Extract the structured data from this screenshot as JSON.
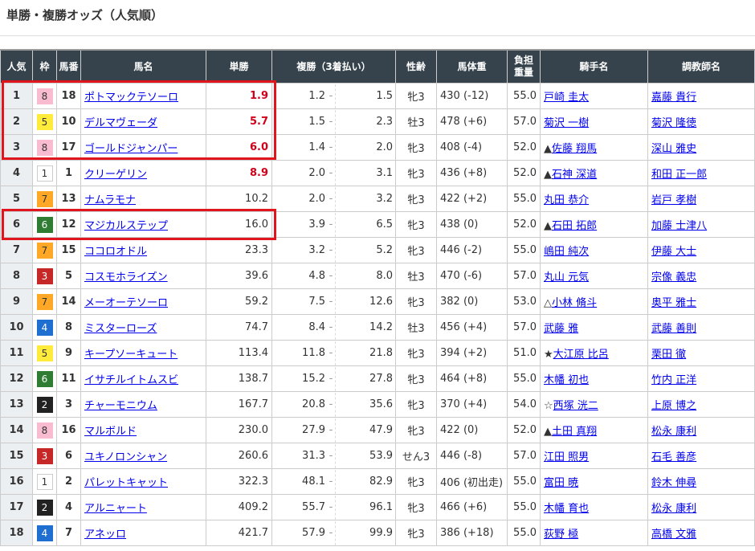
{
  "title": "単勝・複勝オッズ（人気順）",
  "headers": {
    "pop": "人気",
    "waku": "枠",
    "num": "馬番",
    "name": "馬名",
    "win": "単勝",
    "place": "複勝（3着払い）",
    "sexage": "性齢",
    "weight": "馬体重",
    "burden1": "負担",
    "burden2": "重量",
    "jockey": "騎手名",
    "trainer": "調教師名"
  },
  "waku_colors": {
    "1": "#ffffff",
    "2": "#222222",
    "3": "#c62828",
    "4": "#1e6fd0",
    "5": "#ffeb3b",
    "6": "#2e7d32",
    "7": "#ffa726",
    "8": "#f8bbd0"
  },
  "highlight_color": "#e0161e",
  "rows": [
    {
      "pop": "1",
      "waku": "8",
      "num": "18",
      "name": "ポトマックテソーロ",
      "win": "1.9",
      "pmin": "1.2",
      "pmax": "1.5",
      "sexage": "牝3",
      "weight": "430 (-12)",
      "burden": "55.0",
      "mark": "",
      "jockey": "戸崎 圭太",
      "trainer": "嘉藤 貴行"
    },
    {
      "pop": "2",
      "waku": "5",
      "num": "10",
      "name": "デルマヴェーダ",
      "win": "5.7",
      "pmin": "1.5",
      "pmax": "2.3",
      "sexage": "牡3",
      "weight": "478 (+6)",
      "burden": "57.0",
      "mark": "",
      "jockey": "菊沢 一樹",
      "trainer": "菊沢 隆徳"
    },
    {
      "pop": "3",
      "waku": "8",
      "num": "17",
      "name": "ゴールドジャンパー",
      "win": "6.0",
      "pmin": "1.4",
      "pmax": "2.0",
      "sexage": "牝3",
      "weight": "408 (-4)",
      "burden": "52.0",
      "mark": "▲",
      "jockey": "佐藤 翔馬",
      "trainer": "深山 雅史"
    },
    {
      "pop": "4",
      "waku": "1",
      "num": "1",
      "name": "クリーゲリン",
      "win": "8.9",
      "pmin": "2.0",
      "pmax": "3.1",
      "sexage": "牝3",
      "weight": "436 (+8)",
      "burden": "52.0",
      "mark": "▲",
      "jockey": "石神 深道",
      "trainer": "和田 正一郎"
    },
    {
      "pop": "5",
      "waku": "7",
      "num": "13",
      "name": "ナムラモナ",
      "win": "10.2",
      "pmin": "2.0",
      "pmax": "3.2",
      "sexage": "牝3",
      "weight": "422 (+2)",
      "burden": "55.0",
      "mark": "",
      "jockey": "丸田 恭介",
      "trainer": "岩戸 孝樹"
    },
    {
      "pop": "6",
      "waku": "6",
      "num": "12",
      "name": "マジカルステップ",
      "win": "16.0",
      "pmin": "3.9",
      "pmax": "6.5",
      "sexage": "牝3",
      "weight": "438 (0)",
      "burden": "52.0",
      "mark": "▲",
      "jockey": "石田 拓郎",
      "trainer": "加藤 士津八"
    },
    {
      "pop": "7",
      "waku": "7",
      "num": "15",
      "name": "ココロオドル",
      "win": "23.3",
      "pmin": "3.2",
      "pmax": "5.2",
      "sexage": "牝3",
      "weight": "446 (-2)",
      "burden": "55.0",
      "mark": "",
      "jockey": "嶋田 純次",
      "trainer": "伊藤 大士"
    },
    {
      "pop": "8",
      "waku": "3",
      "num": "5",
      "name": "コスモホライズン",
      "win": "39.6",
      "pmin": "4.8",
      "pmax": "8.0",
      "sexage": "牡3",
      "weight": "470 (-6)",
      "burden": "57.0",
      "mark": "",
      "jockey": "丸山 元気",
      "trainer": "宗像 義忠"
    },
    {
      "pop": "9",
      "waku": "7",
      "num": "14",
      "name": "メーオーテソーロ",
      "win": "59.2",
      "pmin": "7.5",
      "pmax": "12.6",
      "sexage": "牝3",
      "weight": "382 (0)",
      "burden": "53.0",
      "mark": "△",
      "jockey": "小林 脩斗",
      "trainer": "奥平 雅士"
    },
    {
      "pop": "10",
      "waku": "4",
      "num": "8",
      "name": "ミスターローズ",
      "win": "74.7",
      "pmin": "8.4",
      "pmax": "14.2",
      "sexage": "牡3",
      "weight": "456 (+4)",
      "burden": "57.0",
      "mark": "",
      "jockey": "武藤 雅",
      "trainer": "武藤 善則"
    },
    {
      "pop": "11",
      "waku": "5",
      "num": "9",
      "name": "キープソーキュート",
      "win": "113.4",
      "pmin": "11.8",
      "pmax": "21.8",
      "sexage": "牝3",
      "weight": "394 (+2)",
      "burden": "51.0",
      "mark": "★",
      "jockey": "大江原 比呂",
      "trainer": "栗田 徹"
    },
    {
      "pop": "12",
      "waku": "6",
      "num": "11",
      "name": "イサチルイトムスビ",
      "win": "138.7",
      "pmin": "15.2",
      "pmax": "27.8",
      "sexage": "牝3",
      "weight": "464 (+8)",
      "burden": "55.0",
      "mark": "",
      "jockey": "木幡 初也",
      "trainer": "竹内 正洋"
    },
    {
      "pop": "13",
      "waku": "2",
      "num": "3",
      "name": "チャーモニウム",
      "win": "167.7",
      "pmin": "20.8",
      "pmax": "35.6",
      "sexage": "牝3",
      "weight": "370 (+4)",
      "burden": "54.0",
      "mark": "☆",
      "jockey": "西塚 洸二",
      "trainer": "上原 博之"
    },
    {
      "pop": "14",
      "waku": "8",
      "num": "16",
      "name": "マルボルド",
      "win": "230.0",
      "pmin": "27.9",
      "pmax": "47.9",
      "sexage": "牝3",
      "weight": "422 (0)",
      "burden": "52.0",
      "mark": "▲",
      "jockey": "土田 真翔",
      "trainer": "松永 康利"
    },
    {
      "pop": "15",
      "waku": "3",
      "num": "6",
      "name": "ユキノロンシャン",
      "win": "260.6",
      "pmin": "31.3",
      "pmax": "53.9",
      "sexage": "せん3",
      "weight": "446 (-8)",
      "burden": "57.0",
      "mark": "",
      "jockey": "江田 照男",
      "trainer": "石毛 善彦"
    },
    {
      "pop": "16",
      "waku": "1",
      "num": "2",
      "name": "パレットキャット",
      "win": "322.3",
      "pmin": "48.1",
      "pmax": "82.9",
      "sexage": "牝3",
      "weight": "406 (初出走)",
      "burden": "55.0",
      "mark": "",
      "jockey": "富田 暁",
      "trainer": "鈴木 伸尋"
    },
    {
      "pop": "17",
      "waku": "2",
      "num": "4",
      "name": "アルニャート",
      "win": "409.2",
      "pmin": "55.7",
      "pmax": "96.1",
      "sexage": "牝3",
      "weight": "466 (+6)",
      "burden": "55.0",
      "mark": "",
      "jockey": "木幡 育也",
      "trainer": "松永 康利"
    },
    {
      "pop": "18",
      "waku": "4",
      "num": "7",
      "name": "アネッロ",
      "win": "421.7",
      "pmin": "57.9",
      "pmax": "99.9",
      "sexage": "牝3",
      "weight": "386 (+18)",
      "burden": "55.0",
      "mark": "",
      "jockey": "荻野 極",
      "trainer": "高橋 文雅"
    }
  ]
}
